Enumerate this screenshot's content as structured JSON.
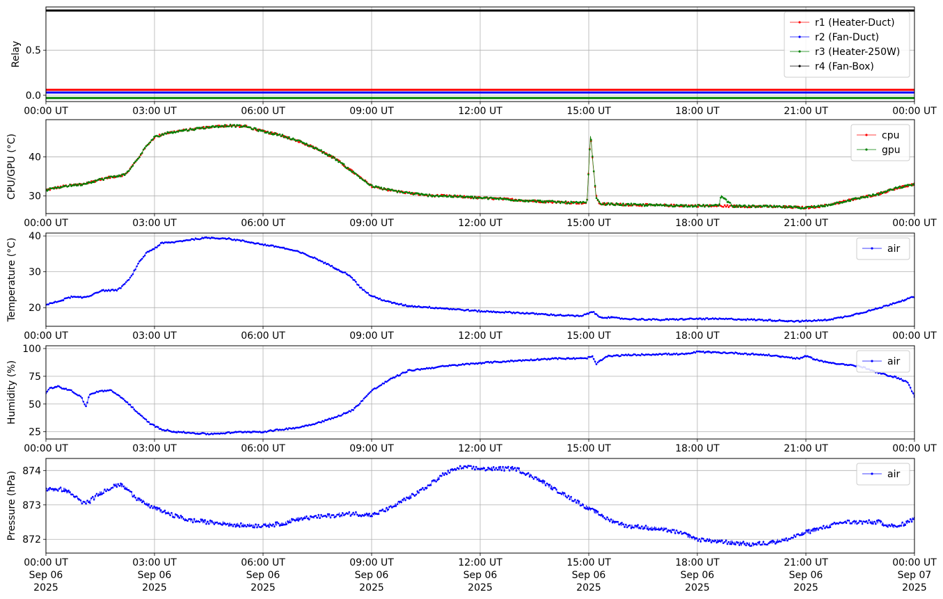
{
  "chart_data": [
    {
      "type": "line",
      "ylabel": "Relay",
      "ylim": [
        -0.07,
        0.98
      ],
      "yticks": [
        0.0,
        0.5
      ],
      "yticklabels": [
        "0.0",
        "0.5"
      ],
      "grid": true,
      "legend_position": "top-right",
      "series": [
        {
          "name": "r1 (Heater-Duct)",
          "color": "#ff0000",
          "constant": 0.06
        },
        {
          "name": "r2 (Fan-Duct)",
          "color": "#0000ff",
          "constant": 0.03
        },
        {
          "name": "r3 (Heater-250W)",
          "color": "#008000",
          "constant": -0.03
        },
        {
          "name": "r4 (Fan-Box)",
          "color": "#000000",
          "constant": 0.94
        }
      ]
    },
    {
      "type": "line",
      "ylabel": "CPU/GPU (°C)",
      "ylim": [
        25.5,
        49.5
      ],
      "yticks": [
        30,
        40
      ],
      "yticklabels": [
        "30",
        "40"
      ],
      "grid": true,
      "legend_position": "top-right",
      "series": [
        {
          "name": "cpu",
          "color": "#ff0000",
          "x": [
            0,
            0.5,
            1,
            1.5,
            1.8,
            2.2,
            2.5,
            2.8,
            3,
            3.3,
            3.6,
            4,
            4.5,
            5,
            5.5,
            6,
            6.5,
            7,
            7.5,
            8,
            8.5,
            9,
            9.5,
            10,
            10.5,
            11,
            11.5,
            12,
            12.5,
            13,
            13.5,
            14,
            14.5,
            14.95,
            15.05,
            15.1,
            15.2,
            15.3,
            16,
            17,
            18,
            19,
            20,
            21,
            21.5,
            22,
            22.5,
            23,
            23.5,
            24
          ],
          "y": [
            31.5,
            32.5,
            33.0,
            34.2,
            34.8,
            35.5,
            39.0,
            43.0,
            45.0,
            46.0,
            46.5,
            47.0,
            47.6,
            48.0,
            47.8,
            46.5,
            45.5,
            44.0,
            42.0,
            39.5,
            36.0,
            32.5,
            31.5,
            30.8,
            30.2,
            30.0,
            29.8,
            29.5,
            29.3,
            29.0,
            28.7,
            28.5,
            28.3,
            28.2,
            46.0,
            40.0,
            30.0,
            28.0,
            27.8,
            27.6,
            27.5,
            27.4,
            27.3,
            27.0,
            27.5,
            28.5,
            29.5,
            30.5,
            32.0,
            33.0
          ]
        },
        {
          "name": "gpu",
          "color": "#008000",
          "x": [
            0,
            0.5,
            1,
            1.5,
            1.8,
            2.2,
            2.5,
            2.8,
            3,
            3.3,
            3.6,
            4,
            4.5,
            5,
            5.5,
            6,
            6.5,
            7,
            7.5,
            8,
            8.5,
            9,
            9.5,
            10,
            10.5,
            11,
            11.5,
            12,
            12.5,
            13,
            13.5,
            14,
            14.5,
            14.95,
            15.05,
            15.1,
            15.2,
            15.3,
            16,
            17,
            18,
            18.6,
            18.65,
            19,
            20,
            21,
            21.5,
            22,
            22.5,
            23,
            23.5,
            24
          ],
          "y": [
            31.5,
            32.5,
            33.0,
            34.2,
            34.8,
            35.5,
            39.0,
            43.0,
            45.0,
            46.0,
            46.5,
            47.0,
            47.6,
            48.0,
            47.8,
            46.5,
            45.5,
            44.0,
            42.0,
            39.5,
            36.0,
            32.5,
            31.5,
            30.8,
            30.2,
            30.0,
            29.8,
            29.5,
            29.3,
            29.0,
            28.7,
            28.5,
            28.3,
            28.2,
            46.0,
            40.0,
            30.0,
            28.0,
            27.8,
            27.6,
            27.5,
            27.5,
            30.0,
            27.4,
            27.3,
            27.0,
            27.5,
            28.5,
            29.5,
            30.5,
            32.0,
            33.0
          ]
        }
      ]
    },
    {
      "type": "line",
      "ylabel": "Temperature (°C)",
      "ylim": [
        14.8,
        40.8
      ],
      "yticks": [
        20,
        30,
        40
      ],
      "yticklabels": [
        "20",
        "30",
        "40"
      ],
      "grid": true,
      "legend_position": "top-right",
      "series": [
        {
          "name": "air",
          "color": "#0000ff",
          "x": [
            0,
            0.3,
            0.5,
            0.7,
            1,
            1.2,
            1.4,
            1.6,
            1.8,
            2,
            2.3,
            2.6,
            2.8,
            3,
            3.2,
            3.5,
            4,
            4.5,
            5,
            5.5,
            6,
            6.5,
            7,
            7.5,
            8,
            8.4,
            8.7,
            9,
            9.5,
            10,
            11,
            12,
            13,
            14,
            14.8,
            15.1,
            15.3,
            15.6,
            16,
            17,
            18,
            19,
            20,
            20.8,
            21.5,
            22,
            22.5,
            23,
            23.5,
            24
          ],
          "y": [
            20.8,
            21.6,
            22.3,
            23.0,
            22.8,
            23.2,
            24.3,
            24.8,
            24.8,
            25.0,
            27.8,
            33.0,
            35.5,
            36.5,
            38.0,
            38.2,
            39.0,
            39.5,
            39.3,
            38.5,
            37.6,
            36.8,
            35.5,
            33.5,
            31.0,
            29.0,
            25.5,
            23.2,
            21.5,
            20.5,
            19.8,
            19.0,
            18.6,
            18.0,
            17.6,
            18.9,
            17.4,
            17.2,
            16.9,
            16.6,
            16.9,
            16.8,
            16.5,
            16.2,
            16.5,
            17.3,
            18.5,
            19.8,
            21.5,
            23.0
          ]
        }
      ]
    },
    {
      "type": "line",
      "ylabel": "Humidity (%)",
      "ylim": [
        18.5,
        102.5
      ],
      "yticks": [
        25,
        50,
        75,
        100
      ],
      "yticklabels": [
        "25",
        "50",
        "75",
        "100"
      ],
      "grid": true,
      "legend_position": "top-right",
      "series": [
        {
          "name": "air",
          "color": "#0000ff",
          "x": [
            0,
            0.1,
            0.3,
            0.5,
            0.7,
            0.9,
            1,
            1.1,
            1.2,
            1.4,
            1.6,
            1.8,
            2,
            2.3,
            2.6,
            2.9,
            3.2,
            3.6,
            4,
            4.5,
            5,
            5.5,
            6,
            6.5,
            7,
            7.5,
            8,
            8.5,
            9,
            9.5,
            10,
            11,
            12,
            13,
            14,
            14.9,
            15.1,
            15.2,
            15.5,
            16,
            17,
            17.7,
            18,
            19,
            20,
            20.8,
            21,
            21.5,
            22,
            22.2,
            22.5,
            23,
            23.5,
            23.8,
            24
          ],
          "y": [
            60,
            64,
            66,
            64,
            62,
            58,
            55,
            47,
            58,
            61,
            62,
            62,
            58,
            50,
            40,
            32,
            27,
            25,
            24,
            23,
            24,
            25,
            25,
            27,
            29,
            33,
            38,
            45,
            62,
            72,
            80,
            84,
            87,
            89,
            91,
            91,
            93,
            86,
            93,
            94,
            95,
            95,
            97,
            96,
            94,
            91,
            93,
            88,
            86,
            85,
            84,
            78,
            74,
            70,
            57
          ]
        }
      ]
    },
    {
      "type": "line",
      "ylabel": "Pressure (hPa)",
      "ylim": [
        871.6,
        874.35
      ],
      "yticks": [
        872,
        873,
        874
      ],
      "yticklabels": [
        "872",
        "873",
        "874"
      ],
      "grid": true,
      "legend_position": "top-right",
      "series": [
        {
          "name": "air",
          "color": "#0000ff",
          "x": [
            0,
            0.5,
            0.8,
            1,
            1.2,
            1.5,
            1.8,
            2,
            2.2,
            2.5,
            2.8,
            3,
            3.5,
            4,
            4.5,
            5,
            5.5,
            6,
            6.5,
            7,
            7.5,
            8,
            8.5,
            9,
            9.5,
            10,
            10.5,
            11,
            11.5,
            12,
            12.5,
            13,
            13.5,
            14,
            14.5,
            15,
            15.5,
            16,
            16.5,
            17,
            17.5,
            18,
            18.5,
            19,
            19.5,
            20,
            20.5,
            21,
            21.5,
            22,
            22.5,
            23,
            23.5,
            24
          ],
          "y": [
            873.45,
            873.45,
            873.25,
            873.05,
            873.1,
            873.35,
            873.5,
            873.6,
            873.5,
            873.2,
            873.0,
            872.9,
            872.7,
            872.55,
            872.5,
            872.45,
            872.4,
            872.4,
            872.45,
            872.6,
            872.65,
            872.7,
            872.75,
            872.7,
            872.9,
            873.2,
            873.5,
            873.9,
            874.1,
            874.05,
            874.05,
            874.05,
            873.8,
            873.5,
            873.2,
            872.9,
            872.6,
            872.4,
            872.35,
            872.3,
            872.2,
            872.0,
            871.95,
            871.9,
            871.85,
            871.9,
            872.0,
            872.2,
            872.35,
            872.5,
            872.5,
            872.5,
            872.35,
            872.6
          ]
        }
      ]
    }
  ],
  "xaxis": {
    "xlim": [
      0,
      24
    ],
    "ticks": [
      0,
      3,
      6,
      9,
      12,
      15,
      18,
      21,
      24
    ],
    "ticklabels": [
      "00:00 UT",
      "03:00 UT",
      "06:00 UT",
      "09:00 UT",
      "12:00 UT",
      "15:00 UT",
      "18:00 UT",
      "21:00 UT",
      "00:00 UT"
    ],
    "date_line": [
      "Sep 06",
      "Sep 06",
      "Sep 06",
      "Sep 06",
      "Sep 06",
      "Sep 06",
      "Sep 06",
      "Sep 06",
      "Sep 07"
    ],
    "year_line": [
      "2025",
      "2025",
      "2025",
      "2025",
      "2025",
      "2025",
      "2025",
      "2025",
      "2025"
    ]
  }
}
